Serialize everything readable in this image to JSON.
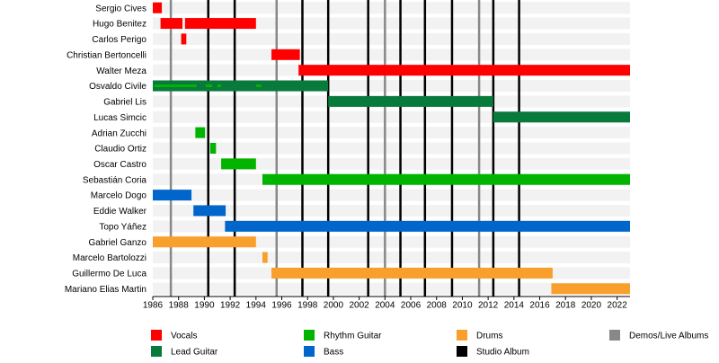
{
  "chart_data": {
    "type": "timeline",
    "xlim": [
      1986,
      2023
    ],
    "xticks": [
      1986,
      1988,
      1990,
      1992,
      1994,
      1996,
      1998,
      2000,
      2002,
      2004,
      2006,
      2008,
      2010,
      2012,
      2014,
      2016,
      2018,
      2020,
      2022
    ],
    "roles": [
      {
        "name": "Vocals",
        "color": "#ff0000"
      },
      {
        "name": "Lead Guitar",
        "color": "#087a3c"
      },
      {
        "name": "Rhythm Guitar",
        "color": "#00b400"
      },
      {
        "name": "Bass",
        "color": "#0066cc"
      },
      {
        "name": "Drums",
        "color": "#f9a02c"
      }
    ],
    "events": [
      {
        "name": "Studio Album",
        "color": "#000000",
        "years": [
          1990.3,
          1992.35,
          1997.6,
          1999.6,
          2002.7,
          2005.2,
          2007.1,
          2009.2,
          2012.4,
          2014.4
        ]
      },
      {
        "name": "Demos/Live Albums",
        "color": "#888888",
        "years": [
          1987.4,
          1995.6,
          2004.0,
          2011.3
        ]
      }
    ],
    "members": [
      {
        "name": "Sergio Cives",
        "periods": [
          {
            "role": 0,
            "start": 1986.0,
            "end": 1986.7
          }
        ]
      },
      {
        "name": "Hugo Benitez",
        "periods": [
          {
            "role": 0,
            "start": 1986.6,
            "end": 1988.3
          },
          {
            "role": 0,
            "start": 1988.5,
            "end": 1994.0
          }
        ]
      },
      {
        "name": "Carlos Perigo",
        "periods": [
          {
            "role": 0,
            "start": 1988.2,
            "end": 1988.6
          }
        ]
      },
      {
        "name": "Christian Bertoncelli",
        "periods": [
          {
            "role": 0,
            "start": 1995.2,
            "end": 1997.4
          }
        ]
      },
      {
        "name": "Walter Meza",
        "periods": [
          {
            "role": 0,
            "start": 1997.3,
            "end": 2023
          }
        ]
      },
      {
        "name": "Osvaldo Civile",
        "periods": [
          {
            "role": 1,
            "start": 1986.0,
            "end": 1999.6
          },
          {
            "role": 2,
            "start": 1986.1,
            "end": 1989.4,
            "thin": true
          },
          {
            "role": 2,
            "start": 1990.1,
            "end": 1990.6,
            "thin": true
          },
          {
            "role": 2,
            "start": 1991.0,
            "end": 1991.3,
            "thin": true
          },
          {
            "role": 2,
            "start": 1994.0,
            "end": 1994.4,
            "thin": true
          }
        ]
      },
      {
        "name": "Gabriel Lis",
        "periods": [
          {
            "role": 1,
            "start": 1999.6,
            "end": 2012.4
          }
        ]
      },
      {
        "name": "Lucas Simcic",
        "periods": [
          {
            "role": 1,
            "start": 2012.4,
            "end": 2023
          }
        ]
      },
      {
        "name": "Adrian Zucchi",
        "periods": [
          {
            "role": 2,
            "start": 1989.3,
            "end": 1990.05
          }
        ]
      },
      {
        "name": "Claudio Ortiz",
        "periods": [
          {
            "role": 2,
            "start": 1990.45,
            "end": 1990.9
          }
        ]
      },
      {
        "name": "Oscar Castro",
        "periods": [
          {
            "role": 2,
            "start": 1991.3,
            "end": 1994.0
          }
        ]
      },
      {
        "name": "Sebastián Coria",
        "periods": [
          {
            "role": 2,
            "start": 1994.5,
            "end": 2023
          }
        ]
      },
      {
        "name": "Marcelo Dogo",
        "periods": [
          {
            "role": 3,
            "start": 1986.0,
            "end": 1989.0
          }
        ]
      },
      {
        "name": "Eddie Walker",
        "periods": [
          {
            "role": 3,
            "start": 1989.15,
            "end": 1991.65
          }
        ]
      },
      {
        "name": "Topo Yáñez",
        "periods": [
          {
            "role": 3,
            "start": 1991.6,
            "end": 2023
          }
        ]
      },
      {
        "name": "Gabriel Ganzo",
        "periods": [
          {
            "role": 4,
            "start": 1986.0,
            "end": 1994.0
          }
        ]
      },
      {
        "name": "Marcelo Bartolozzi",
        "periods": [
          {
            "role": 4,
            "start": 1994.5,
            "end": 1994.9
          }
        ]
      },
      {
        "name": "Guillermo De Luca",
        "periods": [
          {
            "role": 4,
            "start": 1995.2,
            "end": 2017.0
          }
        ]
      },
      {
        "name": "Mariano Elias Martin",
        "periods": [
          {
            "role": 4,
            "start": 2016.9,
            "end": 2023
          }
        ]
      }
    ]
  }
}
